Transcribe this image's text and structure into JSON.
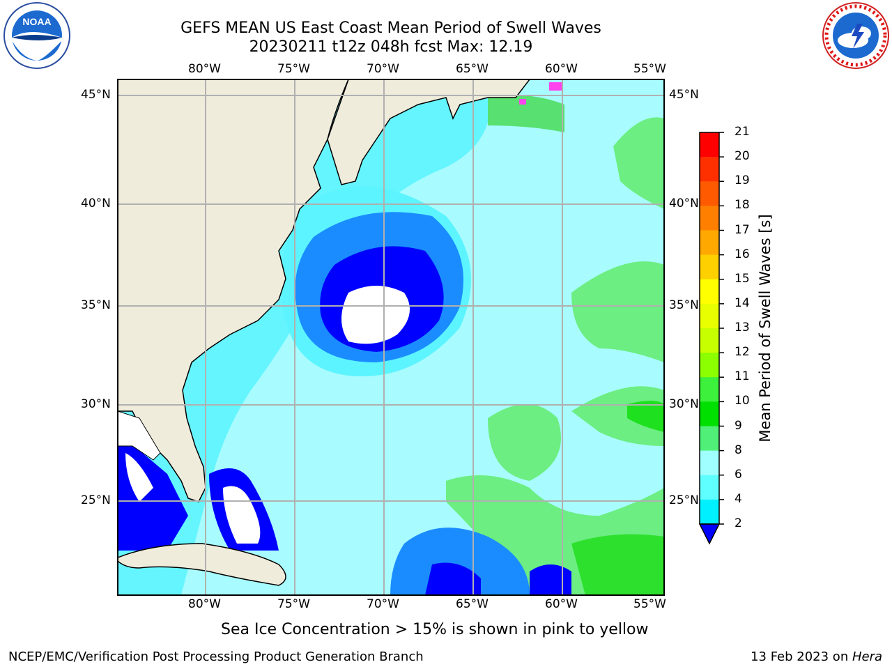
{
  "header": {
    "title_line1": "GEFS MEAN US East Coast Mean Period of Swell Waves",
    "title_line2": "20230211 t12z 048h fcst   Max: 12.19"
  },
  "logos": {
    "left": "noaa-logo",
    "right": "national-weather-service-logo"
  },
  "map": {
    "lon_ticks": [
      "80°W",
      "75°W",
      "70°W",
      "65°W",
      "60°W",
      "55°W"
    ],
    "lat_ticks": [
      "45°N",
      "40°N",
      "35°N",
      "30°N",
      "25°N"
    ],
    "land_color": "#efecdc",
    "grid_color": "#b0b0b0"
  },
  "colorbar": {
    "label": "Mean Period of Swell Waves [s]",
    "ticks": [
      "21",
      "20",
      "19",
      "18",
      "17",
      "16",
      "15",
      "14",
      "13",
      "12",
      "11",
      "10",
      "9",
      "8",
      "6",
      "4",
      "2"
    ],
    "colors": [
      "#ff0000",
      "#ff3000",
      "#ff5a00",
      "#ff8000",
      "#ffa800",
      "#ffd000",
      "#ffff00",
      "#e8ff00",
      "#c8ff00",
      "#8cff00",
      "#3cf03c",
      "#00e000",
      "#50f078",
      "#a0ffff",
      "#60ffff",
      "#00f0ff",
      "#0080ff",
      "#0000ff"
    ]
  },
  "footer": {
    "ice_note": "Sea Ice Concentration > 15% is shown in pink to yellow",
    "left": "NCEP/EMC/Verification Post Processing Product Generation Branch",
    "right_date": "13 Feb 2023 on ",
    "right_host": "Hera"
  }
}
